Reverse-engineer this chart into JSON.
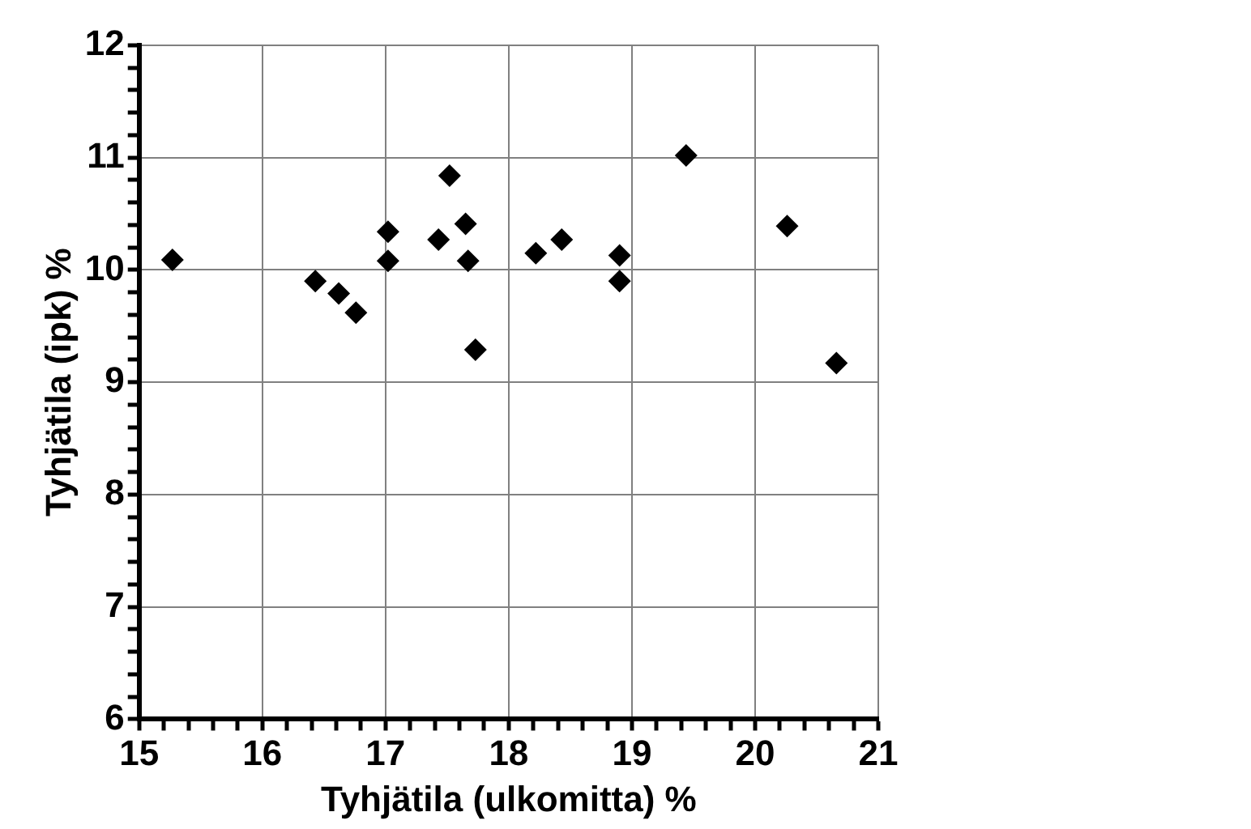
{
  "chart_data": {
    "type": "scatter",
    "xlabel": "Tyhjätila (ulkomitta) %",
    "ylabel": "Tyhjätila (ipk) %",
    "x": [
      15.27,
      16.43,
      16.62,
      16.76,
      17.02,
      17.02,
      17.43,
      17.52,
      17.65,
      17.67,
      17.73,
      18.22,
      18.43,
      18.9,
      18.9,
      19.44,
      20.26,
      20.66
    ],
    "series": [
      {
        "color": "#000000",
        "values": [
          10.09,
          9.9,
          9.79,
          9.62,
          10.34,
          10.08,
          10.27,
          10.84,
          10.41,
          10.08,
          9.29,
          10.15,
          10.27,
          10.13,
          9.9,
          11.02,
          10.39,
          9.17
        ]
      }
    ],
    "marker": "diamond",
    "grid": true,
    "legend": false,
    "xlim": [
      15,
      21
    ],
    "ylim": [
      6,
      12
    ],
    "xticks": [
      15,
      {
        "value": 15.2,
        "label": null
      },
      {
        "value": 15.4,
        "label": null
      },
      {
        "value": 15.6,
        "label": null
      },
      {
        "value": 15.8,
        "label": null
      },
      16,
      {
        "value": 16.2,
        "label": null
      },
      {
        "value": 16.4,
        "label": null
      },
      {
        "value": 16.6,
        "label": null
      },
      {
        "value": 16.8,
        "label": null
      },
      17,
      {
        "value": 17.2,
        "label": null
      },
      {
        "value": 17.4,
        "label": null
      },
      {
        "value": 17.6,
        "label": null
      },
      {
        "value": 17.8,
        "label": null
      },
      18,
      {
        "value": 18.2,
        "label": null
      },
      {
        "value": 18.4,
        "label": null
      },
      {
        "value": 18.6,
        "label": null
      },
      {
        "value": 18.8,
        "label": null
      },
      19,
      {
        "value": 19.2,
        "label": null
      },
      {
        "value": 19.4,
        "label": null
      },
      {
        "value": 19.6,
        "label": null
      },
      {
        "value": 19.8,
        "label": null
      },
      20,
      {
        "value": 20.2,
        "label": null
      },
      {
        "value": 20.4,
        "label": null
      },
      {
        "value": 20.6,
        "label": null
      },
      {
        "value": 20.8,
        "label": null
      },
      21
    ],
    "yticks": [
      6,
      {
        "value": 6.2,
        "label": null
      },
      {
        "value": 6.4,
        "label": null
      },
      {
        "value": 6.6,
        "label": null
      },
      {
        "value": 6.8,
        "label": null
      },
      7,
      {
        "value": 7.2,
        "label": null
      },
      {
        "value": 7.4,
        "label": null
      },
      {
        "value": 7.6,
        "label": null
      },
      {
        "value": 7.8,
        "label": null
      },
      8,
      {
        "value": 8.2,
        "label": null
      },
      {
        "value": 8.4,
        "label": null
      },
      {
        "value": 8.6,
        "label": null
      },
      {
        "value": 8.8,
        "label": null
      },
      9,
      {
        "value": 9.2,
        "label": null
      },
      {
        "value": 9.4,
        "label": null
      },
      {
        "value": 9.6,
        "label": null
      },
      {
        "value": 9.8,
        "label": null
      },
      10,
      {
        "value": 10.2,
        "label": null
      },
      {
        "value": 10.4,
        "label": null
      },
      {
        "value": 10.6,
        "label": null
      },
      {
        "value": 10.8,
        "label": null
      },
      11,
      {
        "value": 11.2,
        "label": null
      },
      {
        "value": 11.4,
        "label": null
      },
      {
        "value": 11.6,
        "label": null
      },
      {
        "value": 11.8,
        "label": null
      },
      12
    ]
  }
}
